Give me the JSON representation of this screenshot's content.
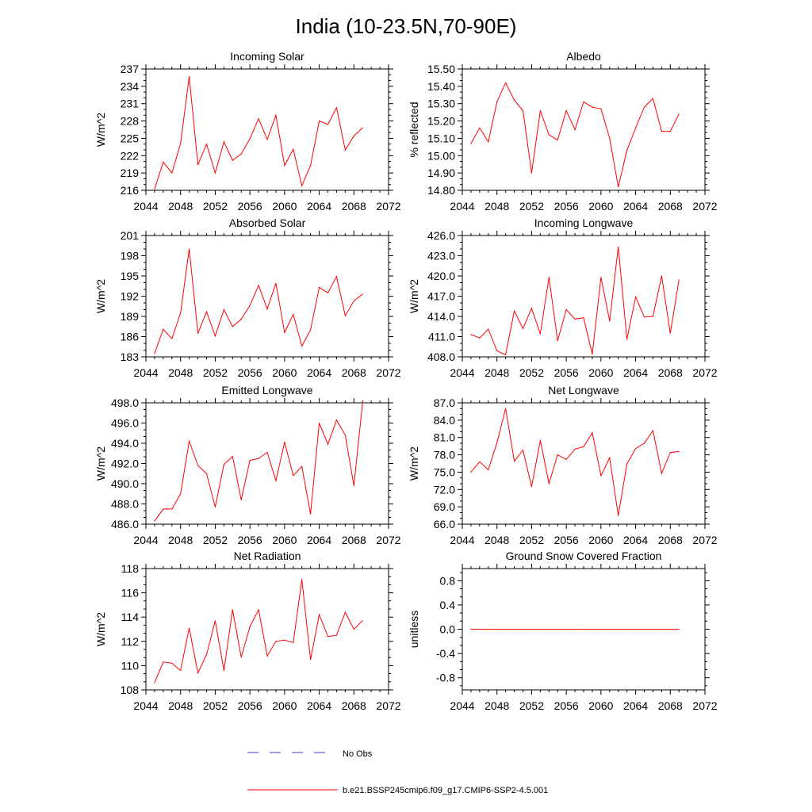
{
  "figure": {
    "title": "India (10-23.5N,70-90E)",
    "legend": [
      {
        "label": "No Obs",
        "color": "#3b3bd6",
        "style": "dashed"
      },
      {
        "label": "b.e21.BSSP245cmip6.f09_g17.CMIP6-SSP2-4.5.001",
        "color": "#ff0000",
        "style": "solid"
      }
    ]
  },
  "chart_data": [
    {
      "type": "line",
      "title": "Incoming Solar",
      "xlabel": "",
      "ylabel": "W/m^2",
      "xlim": [
        2044,
        2072
      ],
      "xticks": [
        "2044",
        "2048",
        "2052",
        "2056",
        "2060",
        "2064",
        "2068",
        "2072"
      ],
      "ylim": [
        216,
        237
      ],
      "yticks": [
        "216",
        "219",
        "222",
        "225",
        "228",
        "231",
        "234",
        "237"
      ],
      "series": [
        {
          "name": "b.e21.BSSP245cmip6.f09_g17.CMIP6-SSP2-4.5.001",
          "color": "#ff0000",
          "x": [
            2045,
            2046,
            2047,
            2048,
            2049,
            2050,
            2051,
            2052,
            2053,
            2054,
            2055,
            2056,
            2057,
            2058,
            2059,
            2060,
            2061,
            2062,
            2063,
            2064,
            2065,
            2066,
            2067,
            2068,
            2069
          ],
          "y": [
            216.2,
            220.9,
            219.0,
            224.1,
            235.7,
            220.4,
            224.0,
            219.0,
            224.4,
            221.2,
            222.3,
            224.9,
            228.4,
            224.8,
            229.0,
            220.3,
            223.1,
            216.8,
            220.3,
            228.0,
            227.4,
            230.3,
            223.0,
            225.4,
            226.8
          ]
        }
      ]
    },
    {
      "type": "line",
      "title": "Albedo",
      "xlabel": "",
      "ylabel": "% reflected",
      "xlim": [
        2044,
        2072
      ],
      "xticks": [
        "2044",
        "2048",
        "2052",
        "2056",
        "2060",
        "2064",
        "2068",
        "2072"
      ],
      "ylim": [
        14.8,
        15.5
      ],
      "yticks": [
        "14.80",
        "14.90",
        "15.00",
        "15.10",
        "15.20",
        "15.30",
        "15.40",
        "15.50"
      ],
      "series": [
        {
          "name": "b.e21.BSSP245cmip6.f09_g17.CMIP6-SSP2-4.5.001",
          "color": "#ff0000",
          "x": [
            2045,
            2046,
            2047,
            2048,
            2049,
            2050,
            2051,
            2052,
            2053,
            2054,
            2055,
            2056,
            2057,
            2058,
            2059,
            2060,
            2061,
            2062,
            2063,
            2064,
            2065,
            2066,
            2067,
            2068,
            2069
          ],
          "y": [
            15.07,
            15.16,
            15.08,
            15.31,
            15.42,
            15.32,
            15.26,
            14.9,
            15.26,
            15.12,
            15.09,
            15.26,
            15.15,
            15.31,
            15.28,
            15.27,
            15.1,
            14.82,
            15.03,
            15.16,
            15.28,
            15.33,
            15.14,
            15.14,
            15.24
          ]
        }
      ]
    },
    {
      "type": "line",
      "title": "Absorbed Solar",
      "xlabel": "",
      "ylabel": "W/m^2",
      "xlim": [
        2044,
        2072
      ],
      "xticks": [
        "2044",
        "2048",
        "2052",
        "2056",
        "2060",
        "2064",
        "2068",
        "2072"
      ],
      "ylim": [
        183,
        201
      ],
      "yticks": [
        "183",
        "186",
        "189",
        "192",
        "195",
        "198",
        "201"
      ],
      "series": [
        {
          "name": "b.e21.BSSP245cmip6.f09_g17.CMIP6-SSP2-4.5.001",
          "color": "#ff0000",
          "x": [
            2045,
            2046,
            2047,
            2048,
            2049,
            2050,
            2051,
            2052,
            2053,
            2054,
            2055,
            2056,
            2057,
            2058,
            2059,
            2060,
            2061,
            2062,
            2063,
            2064,
            2065,
            2066,
            2067,
            2068,
            2069
          ],
          "y": [
            183.5,
            187.1,
            185.7,
            189.5,
            199.0,
            186.5,
            189.7,
            186.1,
            190.0,
            187.5,
            188.6,
            190.6,
            193.6,
            190.1,
            193.9,
            186.6,
            189.3,
            184.6,
            187.0,
            193.3,
            192.5,
            194.9,
            189.1,
            191.3,
            192.3
          ]
        }
      ]
    },
    {
      "type": "line",
      "title": "Incoming Longwave",
      "xlabel": "",
      "ylabel": "W/m^2",
      "xlim": [
        2044,
        2072
      ],
      "xticks": [
        "2044",
        "2048",
        "2052",
        "2056",
        "2060",
        "2064",
        "2068",
        "2072"
      ],
      "ylim": [
        408.0,
        426.0
      ],
      "yticks": [
        "408.0",
        "411.0",
        "414.0",
        "417.0",
        "420.0",
        "423.0",
        "426.0"
      ],
      "series": [
        {
          "name": "b.e21.BSSP245cmip6.f09_g17.CMIP6-SSP2-4.5.001",
          "color": "#ff0000",
          "x": [
            2045,
            2046,
            2047,
            2048,
            2049,
            2050,
            2051,
            2052,
            2053,
            2054,
            2055,
            2056,
            2057,
            2058,
            2059,
            2060,
            2061,
            2062,
            2063,
            2064,
            2065,
            2066,
            2067,
            2068,
            2069
          ],
          "y": [
            411.3,
            410.8,
            412.1,
            408.9,
            408.3,
            414.8,
            412.2,
            415.2,
            411.4,
            419.8,
            410.4,
            415.0,
            413.6,
            413.8,
            408.4,
            419.8,
            413.3,
            424.3,
            410.6,
            416.9,
            413.9,
            414.0,
            420.0,
            411.5,
            419.4
          ]
        }
      ]
    },
    {
      "type": "line",
      "title": "Emitted Longwave",
      "xlabel": "",
      "ylabel": "W/m^2",
      "xlim": [
        2044,
        2072
      ],
      "xticks": [
        "2044",
        "2048",
        "2052",
        "2056",
        "2060",
        "2064",
        "2068",
        "2072"
      ],
      "ylim": [
        486.0,
        498.0
      ],
      "yticks": [
        "486.0",
        "488.0",
        "490.0",
        "492.0",
        "494.0",
        "496.0",
        "498.0"
      ],
      "series": [
        {
          "name": "b.e21.BSSP245cmip6.f09_g17.CMIP6-SSP2-4.5.001",
          "color": "#ff0000",
          "x": [
            2045,
            2046,
            2047,
            2048,
            2049,
            2050,
            2051,
            2052,
            2053,
            2054,
            2055,
            2056,
            2057,
            2058,
            2059,
            2060,
            2061,
            2062,
            2063,
            2064,
            2065,
            2066,
            2067,
            2068,
            2069
          ],
          "y": [
            486.3,
            487.5,
            487.5,
            489.0,
            494.2,
            491.8,
            491.0,
            487.7,
            491.9,
            492.7,
            488.4,
            492.3,
            492.5,
            493.1,
            490.3,
            494.1,
            490.8,
            491.7,
            487.0,
            496.0,
            493.9,
            496.3,
            494.8,
            489.8,
            498.0
          ]
        }
      ]
    },
    {
      "type": "line",
      "title": "Net Longwave",
      "xlabel": "",
      "ylabel": "W/m^2",
      "xlim": [
        2044,
        2072
      ],
      "xticks": [
        "2044",
        "2048",
        "2052",
        "2056",
        "2060",
        "2064",
        "2068",
        "2072"
      ],
      "ylim": [
        66.0,
        87.0
      ],
      "yticks": [
        "66.0",
        "69.0",
        "72.0",
        "75.0",
        "78.0",
        "81.0",
        "84.0",
        "87.0"
      ],
      "series": [
        {
          "name": "b.e21.BSSP245cmip6.f09_g17.CMIP6-SSP2-4.5.001",
          "color": "#ff0000",
          "x": [
            2045,
            2046,
            2047,
            2048,
            2049,
            2050,
            2051,
            2052,
            2053,
            2054,
            2055,
            2056,
            2057,
            2058,
            2059,
            2060,
            2061,
            2062,
            2063,
            2064,
            2065,
            2066,
            2067,
            2068,
            2069
          ],
          "y": [
            75.0,
            76.8,
            75.4,
            80.1,
            86.0,
            76.9,
            78.8,
            72.5,
            80.5,
            73.0,
            78.0,
            77.2,
            79.0,
            79.4,
            81.8,
            74.4,
            77.5,
            67.5,
            76.4,
            79.1,
            80.0,
            82.2,
            74.8,
            78.4,
            78.6
          ]
        }
      ]
    },
    {
      "type": "line",
      "title": "Net Radiation",
      "xlabel": "",
      "ylabel": "W/m^2",
      "xlim": [
        2044,
        2072
      ],
      "xticks": [
        "2044",
        "2048",
        "2052",
        "2056",
        "2060",
        "2064",
        "2068",
        "2072"
      ],
      "ylim": [
        108,
        118
      ],
      "yticks": [
        "108",
        "110",
        "112",
        "114",
        "116",
        "118"
      ],
      "series": [
        {
          "name": "b.e21.BSSP245cmip6.f09_g17.CMIP6-SSP2-4.5.001",
          "color": "#ff0000",
          "x": [
            2045,
            2046,
            2047,
            2048,
            2049,
            2050,
            2051,
            2052,
            2053,
            2054,
            2055,
            2056,
            2057,
            2058,
            2059,
            2060,
            2061,
            2062,
            2063,
            2064,
            2065,
            2066,
            2067,
            2068,
            2069
          ],
          "y": [
            108.6,
            110.3,
            110.2,
            109.6,
            113.1,
            109.4,
            110.9,
            113.7,
            109.6,
            114.6,
            110.7,
            113.2,
            114.6,
            110.8,
            112.0,
            112.1,
            111.9,
            117.1,
            110.5,
            114.2,
            112.4,
            112.5,
            114.4,
            113.0,
            113.7
          ]
        }
      ]
    },
    {
      "type": "line",
      "title": "Ground Snow Covered Fraction",
      "xlabel": "",
      "ylabel": "unitless",
      "xlim": [
        2044,
        2072
      ],
      "xticks": [
        "2044",
        "2048",
        "2052",
        "2056",
        "2060",
        "2064",
        "2068",
        "2072"
      ],
      "ylim": [
        -1.0,
        1.0
      ],
      "yticks": [
        "-0.8",
        "-0.4",
        "0.0",
        "0.4",
        "0.8"
      ],
      "ytick_values": [
        -0.8,
        -0.4,
        0.0,
        0.4,
        0.8
      ],
      "series": [
        {
          "name": "b.e21.BSSP245cmip6.f09_g17.CMIP6-SSP2-4.5.001",
          "color": "#ff0000",
          "x": [
            2045,
            2046,
            2047,
            2048,
            2049,
            2050,
            2051,
            2052,
            2053,
            2054,
            2055,
            2056,
            2057,
            2058,
            2059,
            2060,
            2061,
            2062,
            2063,
            2064,
            2065,
            2066,
            2067,
            2068,
            2069
          ],
          "y": [
            0,
            0,
            0,
            0,
            0,
            0,
            0,
            0,
            0,
            0,
            0,
            0,
            0,
            0,
            0,
            0,
            0,
            0,
            0,
            0,
            0,
            0,
            0,
            0,
            0
          ]
        }
      ]
    }
  ]
}
